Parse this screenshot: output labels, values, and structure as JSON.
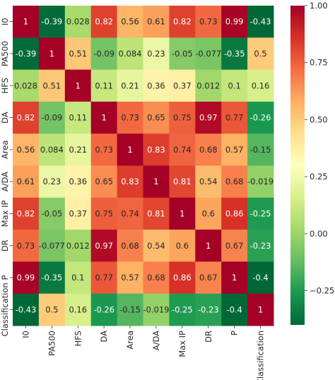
{
  "chart_data": {
    "type": "heatmap",
    "title": "",
    "xlabel": "",
    "ylabel": "",
    "colormap": "RdYlGn_r",
    "colormap_stops": [
      "#006837",
      "#1a9850",
      "#66bd63",
      "#a6d96a",
      "#d9ef8b",
      "#ffffbf",
      "#fee08b",
      "#fdae61",
      "#f46d43",
      "#d73027",
      "#a50026"
    ],
    "vmin": -0.4,
    "vmax": 1.0,
    "colorbar_ticks": [
      "1.00",
      "0.75",
      "0.50",
      "0.25",
      "0.00",
      "−0.25"
    ],
    "colorbar_tick_values": [
      1.0,
      0.75,
      0.5,
      0.25,
      0.0,
      -0.25
    ],
    "x_categories": [
      "I0",
      "PA500",
      "HFS",
      "DA",
      "Area",
      "A/DA",
      "Max IP",
      "DR",
      "P",
      "Classification"
    ],
    "y_categories": [
      "I0",
      "PA500",
      "HFS",
      "DA",
      "Area",
      "A/DA",
      "Max IP",
      "DR",
      "P",
      "Classification"
    ],
    "values": [
      [
        1,
        -0.39,
        0.028,
        0.82,
        0.56,
        0.61,
        0.82,
        0.73,
        0.99,
        -0.43
      ],
      [
        -0.39,
        1,
        0.51,
        -0.09,
        0.084,
        0.23,
        -0.05,
        -0.077,
        -0.35,
        0.5
      ],
      [
        0.028,
        0.51,
        1,
        0.11,
        0.21,
        0.36,
        0.37,
        0.012,
        0.1,
        0.16
      ],
      [
        0.82,
        -0.09,
        0.11,
        1,
        0.73,
        0.65,
        0.75,
        0.97,
        0.77,
        -0.26
      ],
      [
        0.56,
        0.084,
        0.21,
        0.73,
        1,
        0.83,
        0.74,
        0.68,
        0.57,
        -0.15
      ],
      [
        0.61,
        0.23,
        0.36,
        0.65,
        0.83,
        1,
        0.81,
        0.54,
        0.68,
        -0.019
      ],
      [
        0.82,
        -0.05,
        0.37,
        0.75,
        0.74,
        0.81,
        1,
        0.6,
        0.86,
        -0.25
      ],
      [
        0.73,
        -0.077,
        0.012,
        0.97,
        0.68,
        0.54,
        0.6,
        1,
        0.67,
        -0.23
      ],
      [
        0.99,
        -0.35,
        0.1,
        0.77,
        0.57,
        0.68,
        0.86,
        0.67,
        1,
        -0.4
      ],
      [
        -0.43,
        0.5,
        0.16,
        -0.26,
        -0.15,
        -0.019,
        -0.25,
        -0.23,
        -0.4,
        1
      ]
    ],
    "annotations": [
      [
        "1",
        "-0.39",
        "0.028",
        "0.82",
        "0.56",
        "0.61",
        "0.82",
        "0.73",
        "0.99",
        "-0.43"
      ],
      [
        "-0.39",
        "1",
        "0.51",
        "-0.09",
        "0.084",
        "0.23",
        "-0.05",
        "-0.077",
        "-0.35",
        "0.5"
      ],
      [
        "0.028",
        "0.51",
        "1",
        "0.11",
        "0.21",
        "0.36",
        "0.37",
        "0.012",
        "0.1",
        "0.16"
      ],
      [
        "0.82",
        "-0.09",
        "0.11",
        "1",
        "0.73",
        "0.65",
        "0.75",
        "0.97",
        "0.77",
        "-0.26"
      ],
      [
        "0.56",
        "0.084",
        "0.21",
        "0.73",
        "1",
        "0.83",
        "0.74",
        "0.68",
        "0.57",
        "-0.15"
      ],
      [
        "0.61",
        "0.23",
        "0.36",
        "0.65",
        "0.83",
        "1",
        "0.81",
        "0.54",
        "0.68",
        "-0.019"
      ],
      [
        "0.82",
        "-0.05",
        "0.37",
        "0.75",
        "0.74",
        "0.81",
        "1",
        "0.6",
        "0.86",
        "-0.25"
      ],
      [
        "0.73",
        "-0.077",
        "0.012",
        "0.97",
        "0.68",
        "0.54",
        "0.6",
        "1",
        "0.67",
        "-0.23"
      ],
      [
        "0.99",
        "-0.35",
        "0.1",
        "0.77",
        "0.57",
        "0.68",
        "0.86",
        "0.67",
        "1",
        "-0.4"
      ],
      [
        "-0.43",
        "0.5",
        "0.16",
        "-0.26",
        "-0.15",
        "-0.019",
        "-0.25",
        "-0.23",
        "-0.4",
        "1"
      ]
    ],
    "grid": false,
    "legend": "colorbar-right"
  }
}
